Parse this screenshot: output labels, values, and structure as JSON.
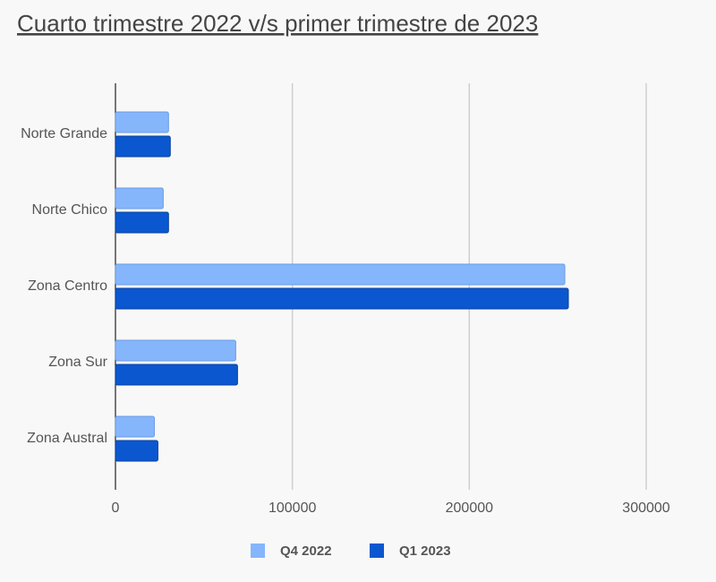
{
  "chart_data": {
    "type": "hbar",
    "title": "Cuarto trimestre 2022 v/s primer trimestre de 2023",
    "categories": [
      "Norte Grande",
      "Norte Chico",
      "Zona Centro",
      "Zona Sur",
      "Zona Austral"
    ],
    "series": [
      {
        "name": "Q4 2022",
        "color": "#85b6fc",
        "values": [
          30000,
          27000,
          254000,
          68000,
          22000
        ]
      },
      {
        "name": "Q1 2023",
        "color": "#0b57d0",
        "values": [
          31000,
          30000,
          256000,
          69000,
          24000
        ]
      }
    ],
    "xlim": [
      0,
      300000
    ],
    "xticks": [
      0,
      100000,
      200000,
      300000
    ],
    "grid": true,
    "legend": "bottom"
  }
}
